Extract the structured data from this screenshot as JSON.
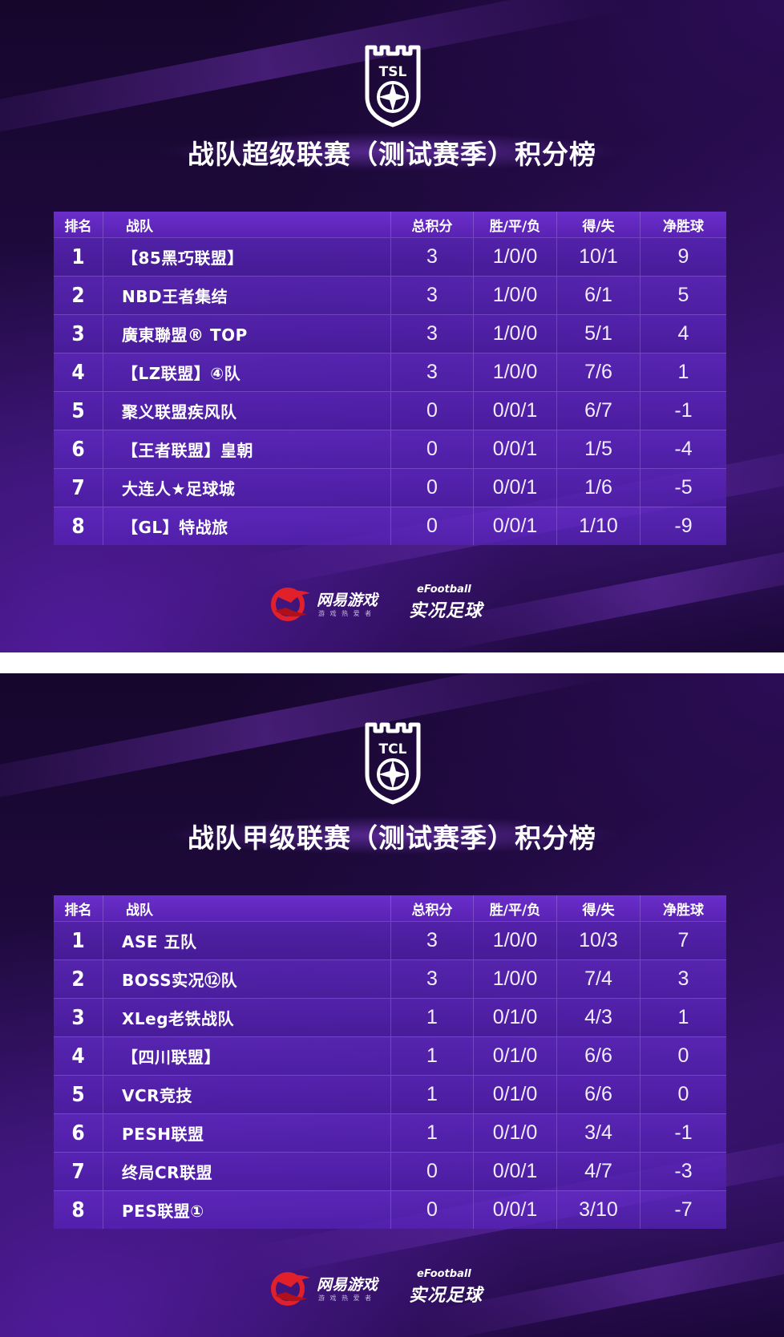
{
  "panels": [
    {
      "logo_text": "TSL",
      "title": "战队超级联赛（测试赛季）积分榜",
      "columns": {
        "rank": "排名",
        "team": "战队",
        "points": "总积分",
        "wdl": "胜/平/负",
        "gf_ga": "得/失",
        "gd": "净胜球"
      },
      "rows": [
        {
          "rank": "1",
          "team": "【85黑巧联盟】",
          "points": "3",
          "wdl": "1/0/0",
          "gf_ga": "10/1",
          "gd": "9"
        },
        {
          "rank": "2",
          "team": "NBD王者集结",
          "points": "3",
          "wdl": "1/0/0",
          "gf_ga": "6/1",
          "gd": "5"
        },
        {
          "rank": "3",
          "team": "廣東聯盟® TOP",
          "points": "3",
          "wdl": "1/0/0",
          "gf_ga": "5/1",
          "gd": "4"
        },
        {
          "rank": "4",
          "team": "【LZ联盟】④队",
          "points": "3",
          "wdl": "1/0/0",
          "gf_ga": "7/6",
          "gd": "1"
        },
        {
          "rank": "5",
          "team": "聚义联盟疾风队",
          "points": "0",
          "wdl": "0/0/1",
          "gf_ga": "6/7",
          "gd": "-1"
        },
        {
          "rank": "6",
          "team": "【王者联盟】皇朝",
          "points": "0",
          "wdl": "0/0/1",
          "gf_ga": "1/5",
          "gd": "-4"
        },
        {
          "rank": "7",
          "team": "大连人★足球城",
          "points": "0",
          "wdl": "0/0/1",
          "gf_ga": "1/6",
          "gd": "-5"
        },
        {
          "rank": "8",
          "team": "【GL】特战旅",
          "points": "0",
          "wdl": "0/0/1",
          "gf_ga": "1/10",
          "gd": "-9"
        }
      ],
      "sponsors": {
        "netease": "网易游戏",
        "netease_sub": "游 戏 热 爱 者",
        "efootball_small": "eFootball",
        "efootball_big": "实况足球"
      }
    },
    {
      "logo_text": "TCL",
      "title": "战队甲级联赛（测试赛季）积分榜",
      "columns": {
        "rank": "排名",
        "team": "战队",
        "points": "总积分",
        "wdl": "胜/平/负",
        "gf_ga": "得/失",
        "gd": "净胜球"
      },
      "rows": [
        {
          "rank": "1",
          "team": "ASE 五队",
          "points": "3",
          "wdl": "1/0/0",
          "gf_ga": "10/3",
          "gd": "7"
        },
        {
          "rank": "2",
          "team": "BOSS实况⑫队",
          "points": "3",
          "wdl": "1/0/0",
          "gf_ga": "7/4",
          "gd": "3"
        },
        {
          "rank": "3",
          "team": "XLeg老铁战队",
          "points": "1",
          "wdl": "0/1/0",
          "gf_ga": "4/3",
          "gd": "1"
        },
        {
          "rank": "4",
          "team": "【四川联盟】",
          "points": "1",
          "wdl": "0/1/0",
          "gf_ga": "6/6",
          "gd": "0"
        },
        {
          "rank": "5",
          "team": "VCR竞技",
          "points": "1",
          "wdl": "0/1/0",
          "gf_ga": "6/6",
          "gd": "0"
        },
        {
          "rank": "6",
          "team": "PESH联盟",
          "points": "1",
          "wdl": "0/1/0",
          "gf_ga": "3/4",
          "gd": "-1"
        },
        {
          "rank": "7",
          "team": "终局CR联盟",
          "points": "0",
          "wdl": "0/0/1",
          "gf_ga": "4/7",
          "gd": "-3"
        },
        {
          "rank": "8",
          "team": "PES联盟①",
          "points": "0",
          "wdl": "0/0/1",
          "gf_ga": "3/10",
          "gd": "-7"
        }
      ],
      "sponsors": {
        "netease": "网易游戏",
        "netease_sub": "游 戏 热 爱 者",
        "efootball_small": "eFootball",
        "efootball_big": "实况足球"
      }
    }
  ]
}
